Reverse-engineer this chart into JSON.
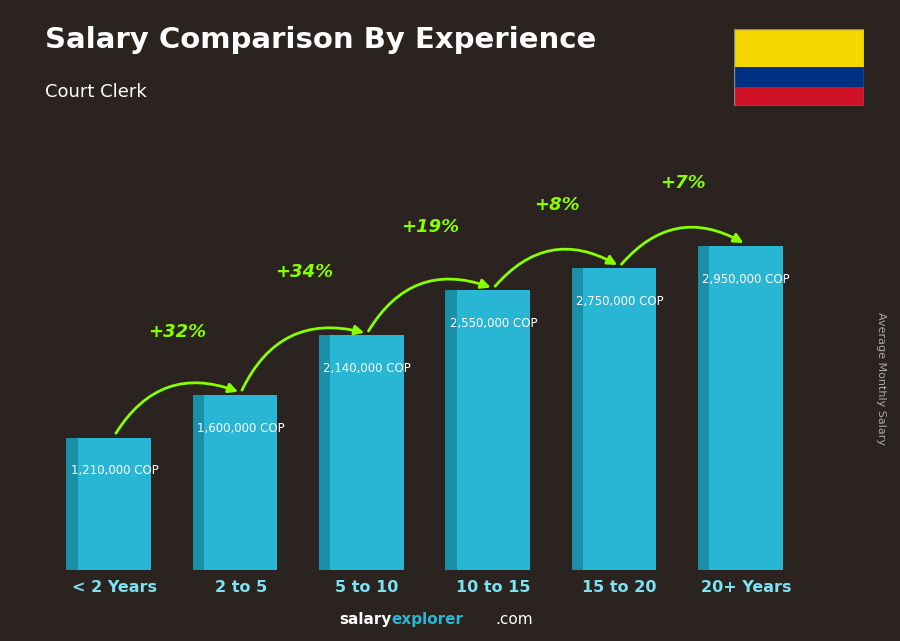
{
  "title": "Salary Comparison By Experience",
  "subtitle": "Court Clerk",
  "ylabel": "Average Monthly Salary",
  "categories": [
    "< 2 Years",
    "2 to 5",
    "5 to 10",
    "10 to 15",
    "15 to 20",
    "20+ Years"
  ],
  "values": [
    1210000,
    1600000,
    2140000,
    2550000,
    2750000,
    2950000
  ],
  "labels": [
    "1,210,000 COP",
    "1,600,000 COP",
    "2,140,000 COP",
    "2,550,000 COP",
    "2,750,000 COP",
    "2,950,000 COP"
  ],
  "pct_changes": [
    null,
    "+32%",
    "+34%",
    "+19%",
    "+8%",
    "+7%"
  ],
  "bar_color_main": "#29b6d4",
  "bar_color_left": "#1a8fa8",
  "bar_color_top": "#7de3f4",
  "background_color": "#2a2320",
  "title_color": "#ffffff",
  "subtitle_color": "#ffffff",
  "label_color": "#7de3f4",
  "pct_color": "#88ff00",
  "salary_label_color": "#ffffff",
  "ylabel_color": "#aaaaaa",
  "footer_salary_color": "#ffffff",
  "footer_explorer_color": "#29b6d4",
  "footer_com_color": "#ffffff",
  "ylim_max": 3500000,
  "flag_yellow": "#F5D800",
  "flag_blue": "#003082",
  "flag_red": "#CE1125"
}
